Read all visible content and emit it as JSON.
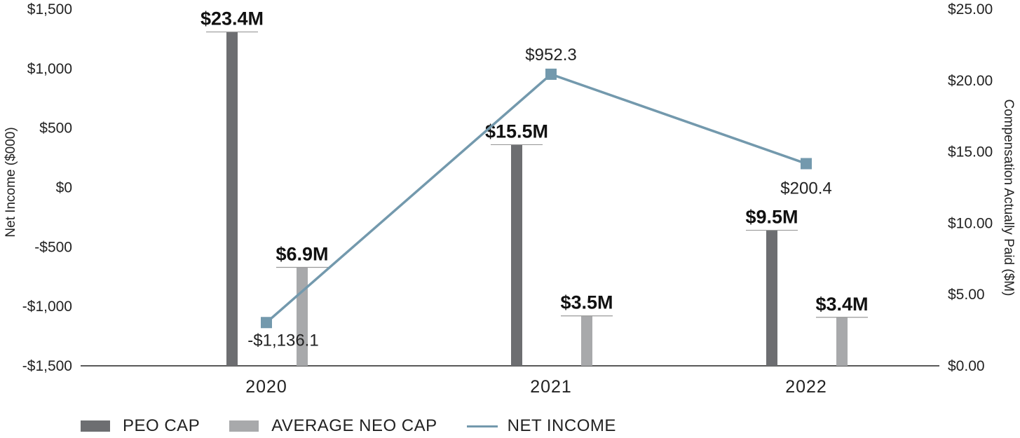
{
  "chart_data": {
    "type": "bar+line",
    "categories": [
      "2020",
      "2021",
      "2022"
    ],
    "series": [
      {
        "name": "PEO CAP",
        "axis": "right",
        "values": [
          23.4,
          15.5,
          9.5
        ],
        "labels": [
          "$23.4M",
          "$15.5M",
          "$9.5M"
        ],
        "color": "#6d6e71"
      },
      {
        "name": "AVERAGE NEO CAP",
        "axis": "right",
        "values": [
          6.9,
          3.5,
          3.4
        ],
        "labels": [
          "$6.9M",
          "$3.5M",
          "$3.4M"
        ],
        "color": "#a8a9ab"
      },
      {
        "name": "NET INCOME",
        "axis": "left",
        "values": [
          -1136.1,
          952.3,
          200.4
        ],
        "labels": [
          "-$1,136.1",
          "$952.3",
          "$200.4"
        ],
        "color": "#7399ad"
      }
    ],
    "y_left": {
      "label": "Net Income ($000)",
      "ylim": [
        -1500,
        1500
      ],
      "ticks": [
        "-$1,500",
        "-$1,000",
        "-$500",
        "$0",
        "$500",
        "$1,000",
        "$1,500"
      ]
    },
    "y_right": {
      "label": "Compensation Actually Paid ($M)",
      "ylim": [
        0,
        25
      ],
      "ticks": [
        "$0.00",
        "$5.00",
        "$10.00",
        "$15.00",
        "$20.00",
        "$25.00"
      ]
    },
    "legend": [
      "PEO CAP",
      "AVERAGE NEO CAP",
      "NET INCOME"
    ],
    "grid": false
  }
}
